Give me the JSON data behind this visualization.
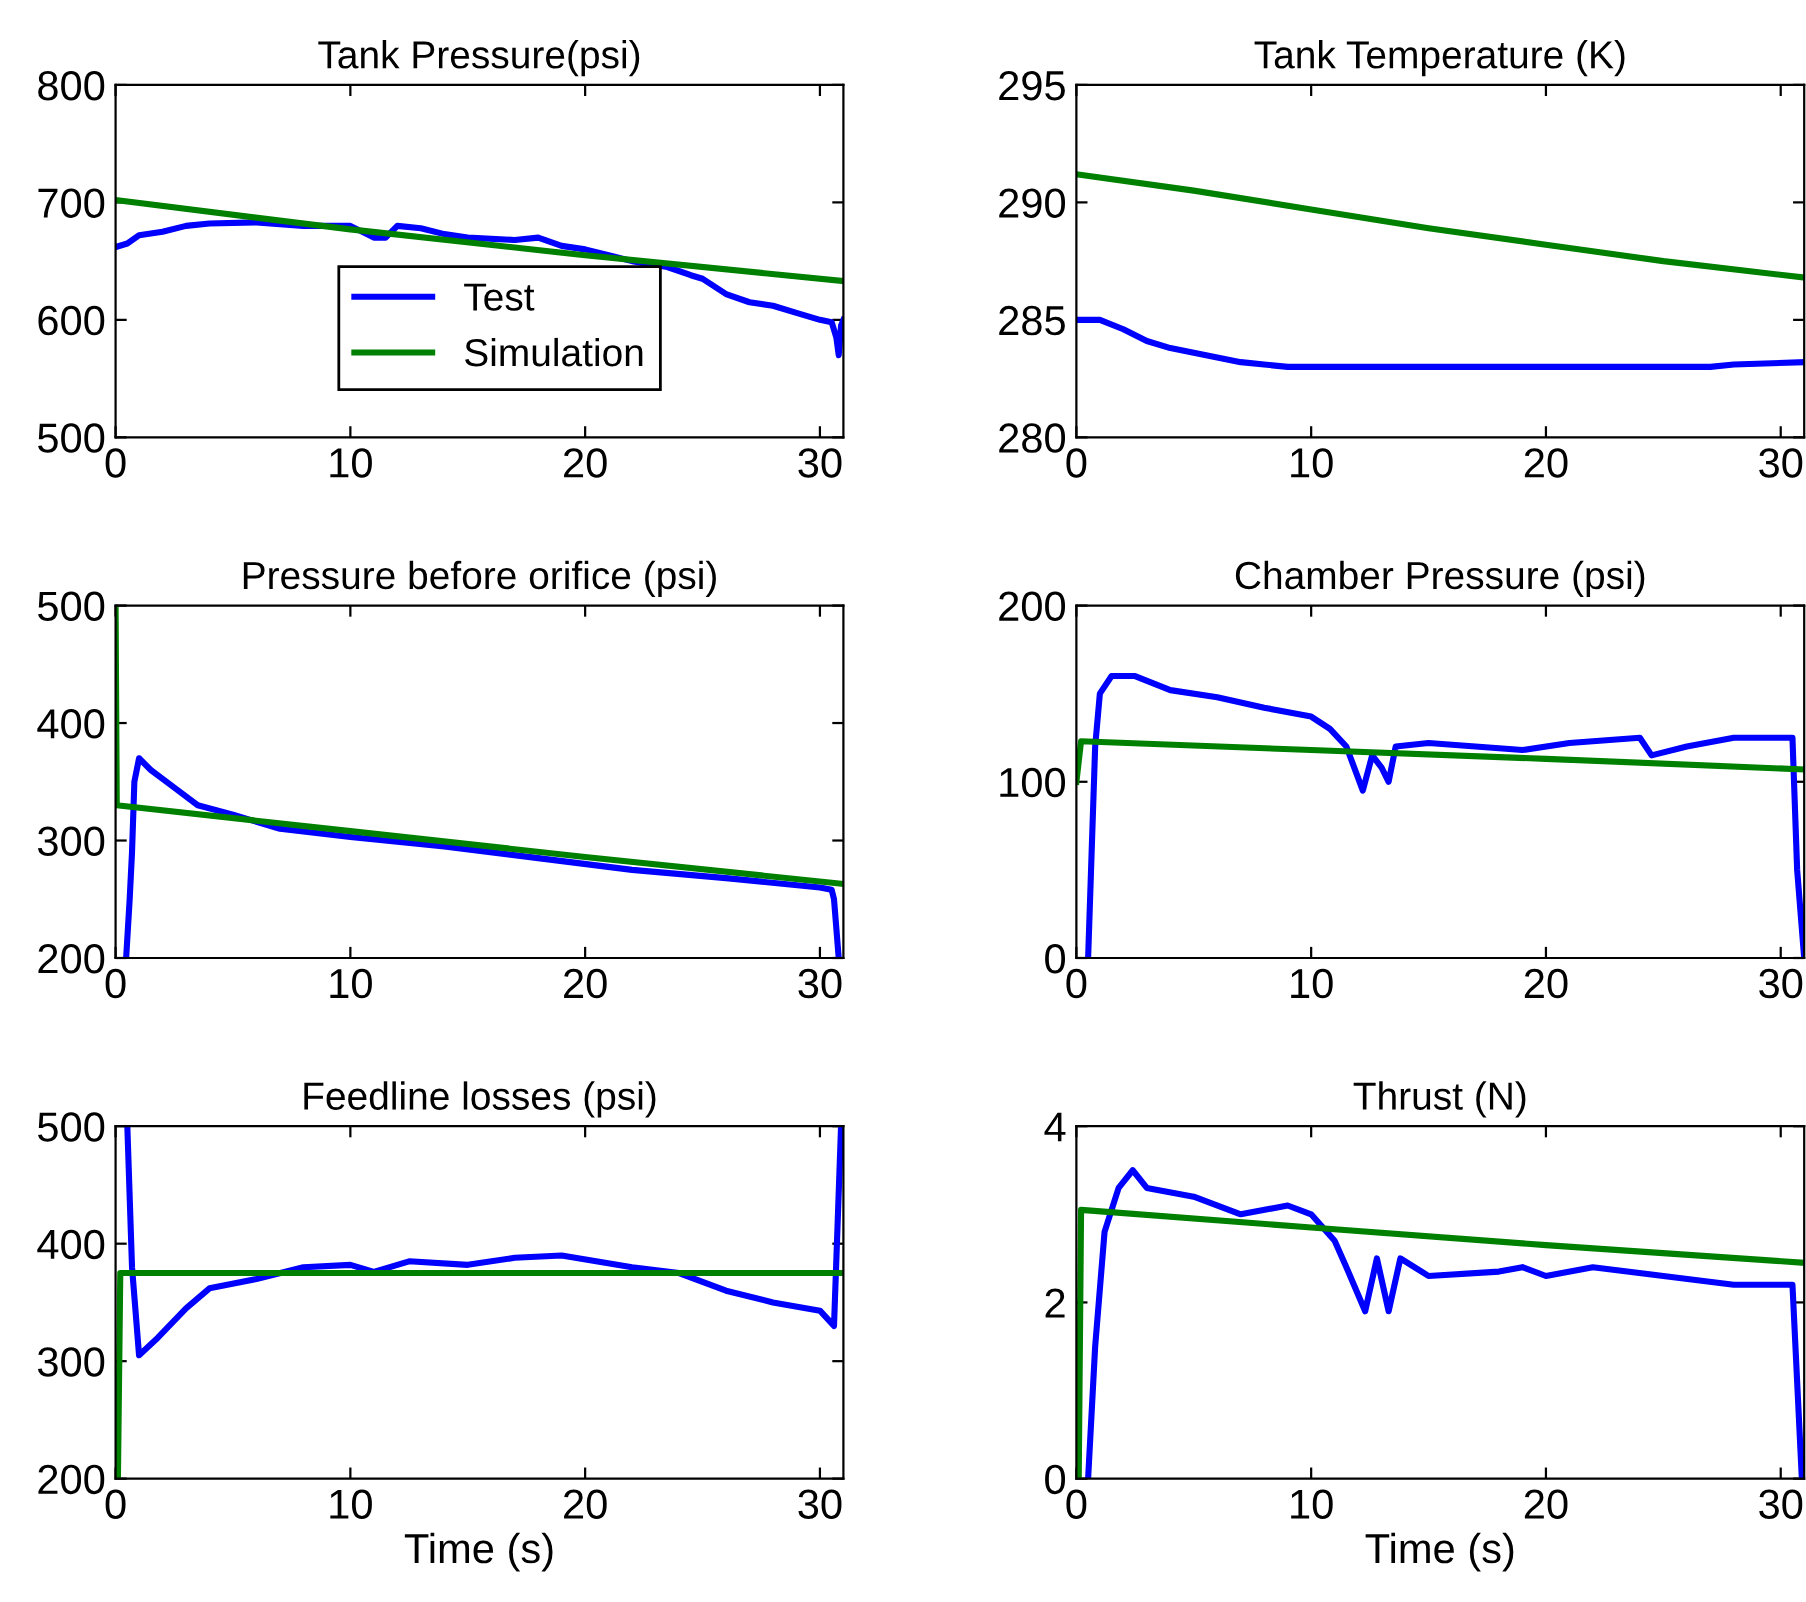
{
  "chart_data": [
    {
      "type": "line",
      "title": "Tank Pressure(psi)",
      "xlim": [
        0,
        31
      ],
      "xticks": [
        0,
        10,
        20,
        30
      ],
      "ylim": [
        500,
        800
      ],
      "yticks": [
        500,
        600,
        700,
        800
      ],
      "legend": "bottom left",
      "series": [
        {
          "name": "Test",
          "color": "#0000ff",
          "x": [
            0,
            0.5,
            1,
            2,
            3,
            4,
            6,
            8,
            9,
            10,
            11,
            11.5,
            12,
            13,
            14,
            15,
            17,
            18,
            19,
            20,
            21,
            22,
            23.5,
            24.5,
            25,
            26,
            27,
            28,
            29,
            30,
            30.5,
            30.7,
            30.8,
            30.9,
            31
          ],
          "values": [
            662,
            665,
            672,
            675,
            680,
            682,
            683,
            680,
            680,
            680,
            670,
            670,
            680,
            678,
            673,
            670,
            668,
            670,
            663,
            660,
            655,
            650,
            645,
            638,
            635,
            622,
            615,
            612,
            606,
            600,
            598,
            585,
            570,
            595,
            600
          ]
        },
        {
          "name": "Simulation",
          "color": "#008000",
          "x": [
            0,
            10,
            20,
            31
          ],
          "values": [
            702,
            677,
            655,
            633
          ]
        }
      ]
    },
    {
      "type": "line",
      "title": "Tank Temperature (K)",
      "xlim": [
        0,
        31
      ],
      "xticks": [
        0,
        10,
        20,
        30
      ],
      "ylim": [
        280,
        295
      ],
      "yticks": [
        280,
        285,
        290,
        295
      ],
      "series": [
        {
          "color": "#0000ff",
          "x": [
            0,
            1,
            2,
            3,
            4,
            5,
            6,
            7,
            8,
            9,
            12,
            16,
            20,
            24,
            27,
            28,
            31
          ],
          "values": [
            285,
            285,
            284.6,
            284.1,
            283.8,
            283.6,
            283.4,
            283.2,
            283.1,
            283,
            283,
            283,
            283,
            283,
            283,
            283.1,
            283.2
          ]
        },
        {
          "color": "#008000",
          "x": [
            0,
            5,
            10,
            15,
            20,
            25,
            31
          ],
          "values": [
            291.2,
            290.5,
            289.7,
            288.9,
            288.2,
            287.5,
            286.8
          ]
        }
      ]
    },
    {
      "type": "line",
      "title": "Pressure before orifice (psi)",
      "xlim": [
        0,
        31
      ],
      "xticks": [
        0,
        10,
        20,
        30
      ],
      "ylim": [
        200,
        500
      ],
      "yticks": [
        200,
        300,
        400,
        500
      ],
      "series": [
        {
          "color": "#0000ff",
          "x": [
            0.45,
            0.6,
            0.7,
            0.8,
            1.0,
            1.5,
            2.5,
            3.5,
            5,
            7,
            10,
            14,
            18,
            22,
            26,
            30,
            30.5,
            30.6,
            30.8
          ],
          "values": [
            200,
            250,
            290,
            350,
            370,
            360,
            345,
            330,
            322,
            310,
            303,
            295,
            285,
            275,
            268,
            260,
            258,
            250,
            200
          ]
        },
        {
          "color": "#008000",
          "x": [
            0,
            0.05,
            10,
            20,
            31
          ],
          "values": [
            500,
            330,
            308,
            286,
            263
          ]
        }
      ]
    },
    {
      "type": "line",
      "title": "Chamber Pressure (psi)",
      "xlim": [
        0,
        31
      ],
      "xticks": [
        0,
        10,
        20,
        30
      ],
      "ylim": [
        0,
        200
      ],
      "yticks": [
        0,
        100,
        200
      ],
      "series": [
        {
          "color": "#0000ff",
          "x": [
            0.5,
            0.65,
            0.8,
            1.0,
            1.5,
            2.5,
            4,
            6,
            8,
            10,
            10.8,
            11.5,
            12.2,
            12.6,
            13.0,
            13.3,
            13.6,
            15,
            19,
            21,
            24,
            24.5,
            26,
            28,
            30.5,
            30.7,
            31
          ],
          "values": [
            0,
            60,
            120,
            150,
            160,
            160,
            152,
            148,
            142,
            137,
            130,
            120,
            95,
            115,
            108,
            100,
            120,
            122,
            118,
            122,
            125,
            115,
            120,
            125,
            125,
            50,
            0
          ]
        },
        {
          "color": "#008000",
          "x": [
            0,
            0.2,
            10,
            20,
            31
          ],
          "values": [
            100,
            123,
            118,
            113,
            107
          ]
        }
      ]
    },
    {
      "type": "line",
      "title": "Feedline losses (psi)",
      "xlabel": "Time (s)",
      "xlim": [
        0,
        31
      ],
      "xticks": [
        0,
        10,
        20,
        30
      ],
      "ylim": [
        200,
        500
      ],
      "yticks": [
        200,
        300,
        400,
        500
      ],
      "series": [
        {
          "color": "#0000ff",
          "x": [
            0.5,
            0.7,
            1.0,
            1.8,
            3,
            4,
            6,
            8,
            10,
            11,
            12.5,
            15,
            17,
            19,
            22,
            24,
            26,
            28,
            30,
            30.6,
            30.9
          ],
          "values": [
            500,
            380,
            305,
            320,
            345,
            362,
            370,
            380,
            382,
            376,
            385,
            382,
            388,
            390,
            380,
            375,
            360,
            350,
            343,
            330,
            500
          ]
        },
        {
          "color": "#008000",
          "x": [
            0.1,
            0.2,
            31
          ],
          "values": [
            200,
            375,
            375
          ]
        }
      ]
    },
    {
      "type": "line",
      "title": "Thrust (N)",
      "xlabel": "Time (s)",
      "xlim": [
        0,
        31
      ],
      "xticks": [
        0,
        10,
        20,
        30
      ],
      "ylim": [
        0,
        4
      ],
      "yticks": [
        0,
        2,
        4
      ],
      "series": [
        {
          "color": "#0000ff",
          "x": [
            0.5,
            0.8,
            1.2,
            1.8,
            2.4,
            3,
            5,
            7,
            9,
            10,
            11,
            11.5,
            12.3,
            12.8,
            13.3,
            13.8,
            15,
            18,
            19,
            20,
            22,
            25,
            28,
            30.5,
            30.9
          ],
          "values": [
            0,
            1.5,
            2.8,
            3.3,
            3.5,
            3.3,
            3.2,
            3.0,
            3.1,
            3.0,
            2.7,
            2.4,
            1.9,
            2.5,
            1.9,
            2.5,
            2.3,
            2.35,
            2.4,
            2.3,
            2.4,
            2.3,
            2.2,
            2.2,
            0
          ]
        },
        {
          "color": "#008000",
          "x": [
            0.1,
            0.2,
            10,
            20,
            31
          ],
          "values": [
            0,
            3.05,
            2.85,
            2.65,
            2.45
          ]
        }
      ]
    }
  ]
}
